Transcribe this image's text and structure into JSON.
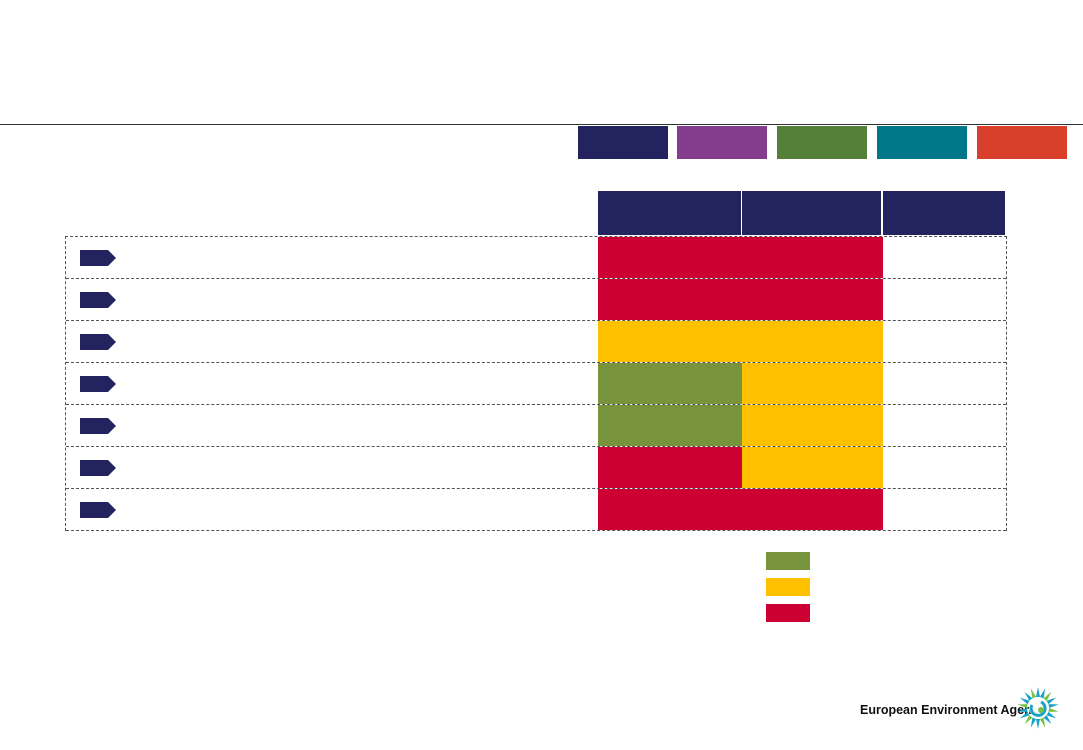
{
  "colors": {
    "navy": "#23245f",
    "purple": "#843c8c",
    "green_tab": "#54803a",
    "teal": "#00788a",
    "orange": "#d9402b",
    "red": "#cc0033",
    "amber": "#ffc000",
    "olive": "#77933c"
  },
  "tabs": [
    {
      "color": "#23245f"
    },
    {
      "color": "#843c8c"
    },
    {
      "color": "#54803a"
    },
    {
      "color": "#00788a"
    },
    {
      "color": "#d9402b"
    }
  ],
  "rows": [
    {
      "c1": "#cc0033",
      "c2": "#cc0033"
    },
    {
      "c1": "#cc0033",
      "c2": "#cc0033"
    },
    {
      "c1": "#ffc000",
      "c2": "#ffc000"
    },
    {
      "c1": "#77933c",
      "c2": "#ffc000"
    },
    {
      "c1": "#77933c",
      "c2": "#ffc000"
    },
    {
      "c1": "#cc0033",
      "c2": "#ffc000"
    },
    {
      "c1": "#cc0033",
      "c2": "#cc0033"
    }
  ],
  "legend": [
    {
      "color": "#77933c"
    },
    {
      "color": "#ffc000"
    },
    {
      "color": "#cc0033"
    }
  ],
  "footer": {
    "org_name": "European Environment Agency",
    "logo_icon": "eea-sun-logo-icon"
  }
}
